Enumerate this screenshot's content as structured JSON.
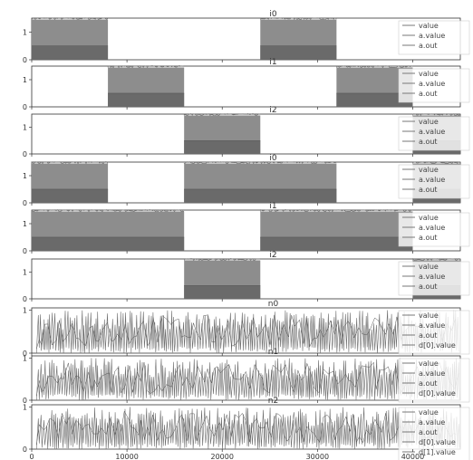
{
  "chart_data": [
    {
      "type": "line",
      "title": "i0",
      "xlim": [
        0,
        45000
      ],
      "ylim": [
        0,
        1.5
      ],
      "yticks": [
        "0",
        "1"
      ],
      "legend": [
        "value",
        "a.value",
        "a.out"
      ],
      "active_intervals": [
        [
          0,
          8000
        ],
        [
          24000,
          32000
        ]
      ],
      "series": [
        {
          "name": "value",
          "high": 1.45,
          "low": 0
        },
        {
          "name": "a.value",
          "high": 0.5,
          "low": 0
        },
        {
          "name": "a.out",
          "high": 1.4,
          "low": 0
        }
      ]
    },
    {
      "type": "line",
      "title": "i1",
      "xlim": [
        0,
        45000
      ],
      "ylim": [
        0,
        1.5
      ],
      "yticks": [
        "0",
        "1"
      ],
      "legend": [
        "value",
        "a.value",
        "a.out"
      ],
      "active_intervals": [
        [
          8000,
          16000
        ],
        [
          32000,
          40000
        ]
      ],
      "series": [
        {
          "name": "value",
          "high": 1.45,
          "low": 0
        },
        {
          "name": "a.value",
          "high": 0.5,
          "low": 0
        },
        {
          "name": "a.out",
          "high": 1.4,
          "low": 0
        }
      ]
    },
    {
      "type": "line",
      "title": "i2",
      "xlim": [
        0,
        45000
      ],
      "ylim": [
        0,
        1.5
      ],
      "yticks": [
        "0",
        "1"
      ],
      "legend": [
        "value",
        "a.value",
        "a.out"
      ],
      "active_intervals": [
        [
          16000,
          24000
        ],
        [
          40000,
          45000
        ]
      ],
      "series": [
        {
          "name": "value",
          "high": 1.45,
          "low": 0
        },
        {
          "name": "a.value",
          "high": 0.5,
          "low": 0
        },
        {
          "name": "a.out",
          "high": 1.4,
          "low": 0
        }
      ]
    },
    {
      "type": "line",
      "title": "i0",
      "xlim": [
        0,
        45000
      ],
      "ylim": [
        0,
        1.5
      ],
      "yticks": [
        "0",
        "1"
      ],
      "legend": [
        "value",
        "a.value",
        "a.out"
      ],
      "active_intervals": [
        [
          0,
          8000
        ],
        [
          16000,
          32000
        ],
        [
          40000,
          45000
        ]
      ],
      "series": [
        {
          "name": "value",
          "high": 1.45,
          "low": 0
        },
        {
          "name": "a.value",
          "high": 0.5,
          "low": 0
        },
        {
          "name": "a.out",
          "high": 1.4,
          "low": 0
        }
      ]
    },
    {
      "type": "line",
      "title": "i1",
      "xlim": [
        0,
        45000
      ],
      "ylim": [
        0,
        1.5
      ],
      "yticks": [
        "0",
        "1"
      ],
      "legend": [
        "value",
        "a.value",
        "a.out"
      ],
      "active_intervals": [
        [
          0,
          16000
        ],
        [
          24000,
          40000
        ]
      ],
      "series": [
        {
          "name": "value",
          "high": 1.45,
          "low": 0
        },
        {
          "name": "a.value",
          "high": 0.5,
          "low": 0
        },
        {
          "name": "a.out",
          "high": 1.4,
          "low": 0
        }
      ]
    },
    {
      "type": "line",
      "title": "i2",
      "xlim": [
        0,
        45000
      ],
      "ylim": [
        0,
        1.5
      ],
      "yticks": [
        "0",
        "1"
      ],
      "legend": [
        "value",
        "a.value",
        "a.out"
      ],
      "active_intervals": [
        [
          16000,
          24000
        ],
        [
          40000,
          45000
        ]
      ],
      "series": [
        {
          "name": "value",
          "high": 1.45,
          "low": 0
        },
        {
          "name": "a.value",
          "high": 0.5,
          "low": 0
        },
        {
          "name": "a.out",
          "high": 1.4,
          "low": 0
        }
      ]
    },
    {
      "type": "line",
      "title": "n0",
      "xlim": [
        0,
        45000
      ],
      "ylim": [
        0,
        1.05
      ],
      "yticks": [
        "0",
        "1"
      ],
      "legend": [
        "value",
        "a.value",
        "a.out",
        "d[0].value"
      ],
      "active_intervals": [
        [
          0,
          45000
        ]
      ],
      "spike_start": 500,
      "series": [
        {
          "name": "value",
          "high": 1.0,
          "low": 0
        },
        {
          "name": "a.value",
          "high": 1.0,
          "low": 0
        },
        {
          "name": "a.out",
          "high": 1.0,
          "low": 0
        },
        {
          "name": "d[0].value",
          "high": 1.0,
          "low": 0
        }
      ]
    },
    {
      "type": "line",
      "title": "n1",
      "xlim": [
        0,
        45000
      ],
      "ylim": [
        0,
        1.05
      ],
      "yticks": [
        "0",
        "1"
      ],
      "legend": [
        "value",
        "a.value",
        "a.out",
        "d[0].value"
      ],
      "active_intervals": [
        [
          0,
          45000
        ]
      ],
      "spike_start": 500,
      "series": [
        {
          "name": "value",
          "high": 1.0,
          "low": 0
        },
        {
          "name": "a.value",
          "high": 1.0,
          "low": 0
        },
        {
          "name": "a.out",
          "high": 1.0,
          "low": 0
        },
        {
          "name": "d[0].value",
          "high": 1.0,
          "low": 0
        }
      ]
    },
    {
      "type": "line",
      "title": "n2",
      "xlim": [
        0,
        45000
      ],
      "ylim": [
        0,
        1.05
      ],
      "yticks": [
        "0",
        "1"
      ],
      "legend": [
        "value",
        "a.value",
        "a.out",
        "d[0].value",
        "d[1].value"
      ],
      "active_intervals": [
        [
          0,
          45000
        ]
      ],
      "spike_start": 500,
      "series": [
        {
          "name": "value",
          "high": 1.0,
          "low": 0
        },
        {
          "name": "a.value",
          "high": 1.0,
          "low": 0
        },
        {
          "name": "a.out",
          "high": 1.0,
          "low": 0
        },
        {
          "name": "d[0].value",
          "high": 1.0,
          "low": 0
        },
        {
          "name": "d[1].value",
          "high": 1.0,
          "low": 0
        }
      ]
    }
  ],
  "x_axis": {
    "ticks": [
      0,
      10000,
      20000,
      30000,
      40000
    ],
    "tick_labels": [
      "0",
      "10000",
      "20000",
      "30000",
      "40000"
    ]
  },
  "colors": {
    "trace": "#6e6e6e",
    "trace_dark": "#555555",
    "frame": "#333333",
    "legend_edge": "#cccccc"
  }
}
